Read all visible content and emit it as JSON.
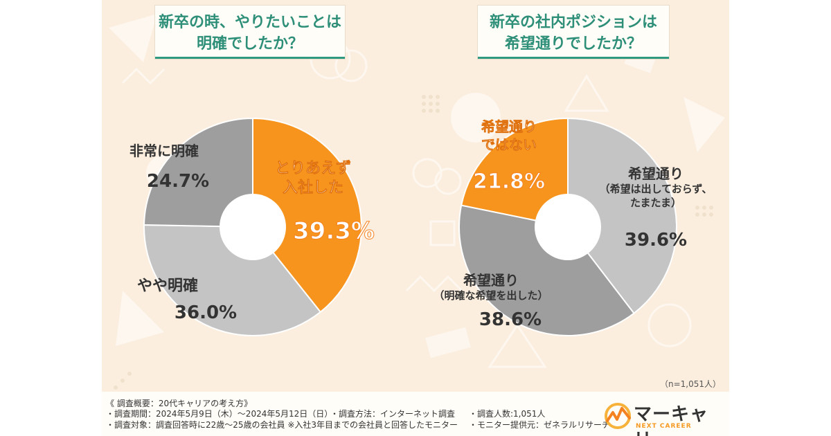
{
  "chart_data": [
    {
      "type": "pie",
      "title": "新卒の時、やりたいことは明確でしたか？",
      "title_lines": [
        "新卒の時、やりたいことは",
        "明確でしたか？"
      ],
      "slices": [
        {
          "label": "とりあえず入社した",
          "label_lines": [
            "とりあえず",
            "入社した"
          ],
          "value": 39.3,
          "value_text": "39.3%",
          "color": "#f7941d"
        },
        {
          "label": "やや明確",
          "label_lines": [
            "やや明確"
          ],
          "value": 36.0,
          "value_text": "36.0%",
          "color": "#c4c4c4"
        },
        {
          "label": "非常に明確",
          "label_lines": [
            "非常に明確"
          ],
          "value": 24.7,
          "value_text": "24.7%",
          "color": "#9e9e9e"
        }
      ]
    },
    {
      "type": "pie",
      "title": "新卒の社内ポジションは希望通りでしたか？",
      "title_lines": [
        "新卒の社内ポジションは",
        "希望通りでしたか？"
      ],
      "slices": [
        {
          "label": "希望通り（希望は出しておらず、たまたま）",
          "label_lines": [
            "希望通り",
            "（希望は出しておらず、",
            "たまたま）"
          ],
          "value": 39.6,
          "value_text": "39.6%",
          "color": "#c4c4c4"
        },
        {
          "label": "希望通り（明確な希望を出した）",
          "label_lines": [
            "希望通り",
            "（明確な希望を出した）"
          ],
          "value": 38.6,
          "value_text": "38.6%",
          "color": "#9e9e9e"
        },
        {
          "label": "希望通りではない",
          "label_lines": [
            "希望通り",
            "ではない"
          ],
          "value": 21.8,
          "value_text": "21.8%",
          "color": "#f7941d"
        }
      ]
    }
  ],
  "sample_note": "（n=1,051人）",
  "footer": {
    "heading": "《 調査概要：20代キャリアの考え方》",
    "period": "・調査期間：2024年5月9日（木）〜2024年5月12日（日）",
    "method": "・調査方法：インターネット調査",
    "count": "・調査人数:1,051人",
    "target": "・調査対象：調査回答時に22歳〜25歳の会社員 ※入社3年目までの会社員と回答したモニター",
    "provider": "・モニター提供元：ゼネラルリサーチ"
  },
  "logo": {
    "name": "マーキャリ",
    "sub": "NEXT CAREER"
  },
  "colors": {
    "accent_green": "#2e8f78",
    "orange": "#f7941d",
    "light_gray": "#c4c4c4",
    "dark_gray": "#9e9e9e",
    "background": "#fbeede"
  }
}
